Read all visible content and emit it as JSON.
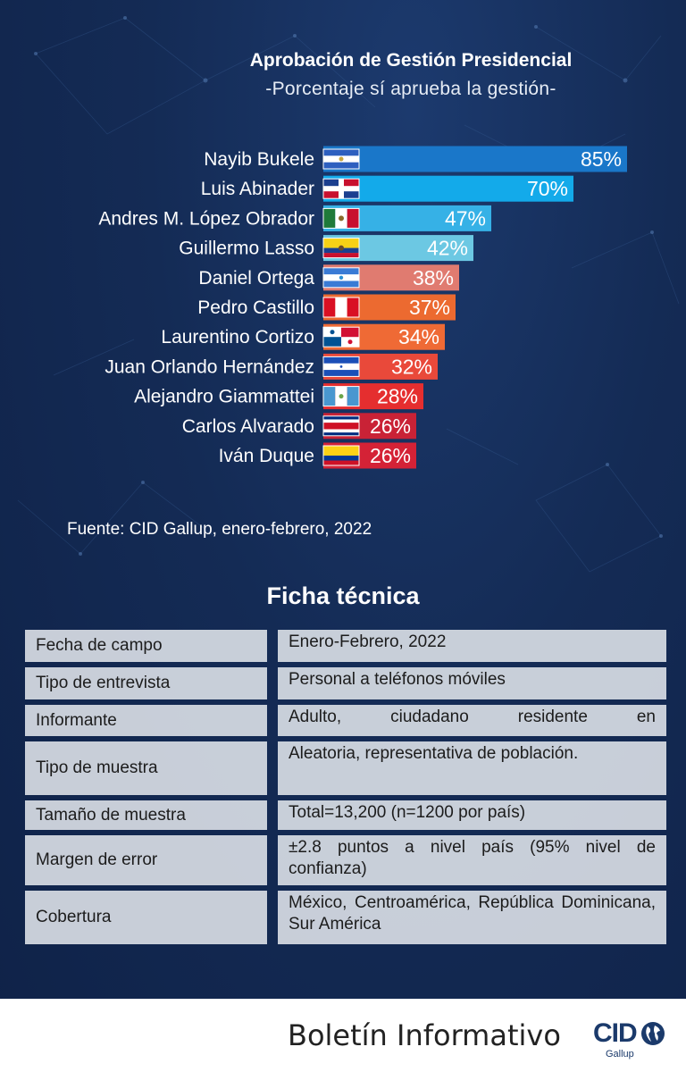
{
  "chart_data": {
    "type": "bar",
    "orientation": "horizontal",
    "title": "Aprobación de Gestión Presidencial",
    "subtitle": "-Porcentaje sí aprueba la gestión-",
    "categories": [
      "Nayib Bukele",
      "Luis Abinader",
      "Andres M. López Obrador",
      "Guillermo Lasso",
      "Daniel Ortega",
      "Pedro Castillo",
      "Laurentino Cortizo",
      "Juan Orlando Hernández",
      "Alejandro Giammattei",
      "Carlos Alvarado",
      "Iván Duque"
    ],
    "values": [
      85,
      70,
      47,
      42,
      38,
      37,
      34,
      32,
      28,
      26,
      26
    ],
    "value_labels": [
      "85%",
      "70%",
      "47%",
      "42%",
      "38%",
      "37%",
      "34%",
      "32%",
      "28%",
      "26%",
      "26%"
    ],
    "bar_colors": [
      "#1a77c9",
      "#13aaea",
      "#36b1e6",
      "#6cc8e3",
      "#e07b70",
      "#ec6a30",
      "#ef6a35",
      "#e9493a",
      "#e52e2f",
      "#c92236",
      "#d42236"
    ],
    "flags": [
      "flag-el-salvador-icon",
      "flag-dominican-republic-icon",
      "flag-mexico-icon",
      "flag-ecuador-icon",
      "flag-nicaragua-icon",
      "flag-peru-icon",
      "flag-panama-icon",
      "flag-honduras-icon",
      "flag-guatemala-icon",
      "flag-costa-rica-icon",
      "flag-colombia-icon"
    ],
    "xlim": [
      0,
      100
    ],
    "grid": false
  },
  "source": "Fuente: CID Gallup, enero-febrero, 2022",
  "ficha": {
    "title": "Ficha técnica",
    "rows": [
      {
        "label": "Fecha de campo",
        "value": "Enero-Febrero, 2022"
      },
      {
        "label": "Tipo de entrevista",
        "value": "Personal a teléfonos móviles"
      },
      {
        "label": "Informante",
        "value": "Adulto, ciudadano residente en"
      },
      {
        "label": "Tipo de muestra",
        "value": "Aleatoria, representativa de población."
      },
      {
        "label": "Tamaño de muestra",
        "value": "Total=13,200 (n=1200 por país)"
      },
      {
        "label": "Margen de error",
        "value": "±2.8 puntos a nivel país (95% nivel de confianza)"
      },
      {
        "label": "Cobertura",
        "value": "México, Centroamérica, República Dominicana, Sur América"
      }
    ]
  },
  "footer": {
    "text": "Boletín Informativo",
    "logo_text": "CID",
    "logo_sub": "Gallup"
  }
}
